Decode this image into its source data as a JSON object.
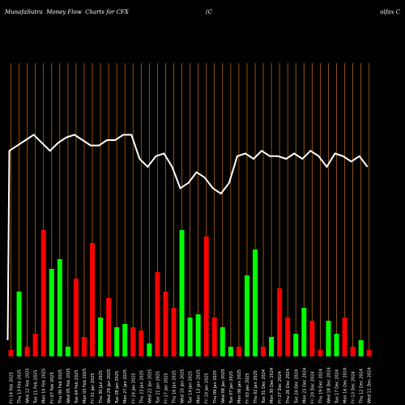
{
  "header": {
    "left": "MunafaSutra  Money Flow  Charts for CFX",
    "middle": "(C",
    "right": "olfax C"
  },
  "colors": {
    "background": "#000000",
    "grid": "#b4650f",
    "up": "#00ff00",
    "down": "#ff0000",
    "price_line": "#ffffff",
    "text": "#ffffff"
  },
  "chart_data": {
    "type": "bar",
    "title": "MunafaSutra  Money Flow  Charts for CFX",
    "categories": [
      "Fri 14 Feb 2025",
      "Thu 13 Feb 2025",
      "Wed 12 Feb 2025",
      "Tue 11 Feb 2025",
      "Mon 10 Feb 2025",
      "Fri 07 Feb 2025",
      "Thu 06 Feb 2025",
      "Wed 05 Feb 2025",
      "Tue 04 Feb 2025",
      "Mon 03 Feb 2025",
      "Fri 31 Jan 2025",
      "Thu 30 Jan 2025",
      "Wed 29 Jan 2025",
      "Tue 28 Jan 2025",
      "Mon 27 Jan 2025",
      "Fri 24 Jan 2025",
      "Thu 23 Jan 2025",
      "Wed 22 Jan 2025",
      "Tue 21 Jan 2025",
      "Fri 17 Jan 2025",
      "Thu 16 Jan 2025",
      "Wed 15 Jan 2025",
      "Tue 14 Jan 2025",
      "Mon 13 Jan 2025",
      "Fri 10 Jan 2025",
      "Thu 09 Jan 2025",
      "Wed 08 Jan 2025",
      "Tue 07 Jan 2025",
      "Mon 06 Jan 2025",
      "Fri 03 Jan 2025",
      "Thu 02 Jan 2025",
      "Tue 31 Dec 2024",
      "Mon 30 Dec 2024",
      "Fri 27 Dec 2024",
      "Thu 26 Dec 2024",
      "Tue 24 Dec 2024",
      "Mon 23 Dec 2024",
      "Fri 20 Dec 2024",
      "Thu 19 Dec 2024",
      "Wed 18 Dec 2024",
      "Tue 17 Dec 2024",
      "Mon 16 Dec 2024",
      "Fri 13 Dec 2024",
      "Thu 12 Dec 2024",
      "Wed 11 Dec 2024"
    ],
    "tick_labels": [
      "3 Feb 2025",
      "CFX",
      "6 Feb 2025",
      "12 Feb 2025",
      "13 Feb 2025",
      "1 Feb 2025",
      "5 Feb 2025",
      "7 Feb 2025",
      "4 Feb 2025",
      "6 Feb 2025",
      "11 Feb 2025",
      "14 Feb 2025",
      "7 Jan 2025",
      "8 Jan 2025",
      "9 Jan 2025",
      "10 Jan 2025",
      "13 Jan 2025",
      "14 Jan 2025",
      "15 Jan 2025",
      "16 Jan 2025",
      "17 Jan 2025",
      "21 Jan 2025",
      "22 Jan 2025",
      "23 Jan 2025",
      "24 Jan 2025",
      "27 Jan 2025",
      "28 Jan 2025",
      "29 Jan 2025",
      "30 Jan 2025",
      "31 Jan 2025",
      "3 Feb 2025",
      "4 Feb 2025",
      "5 Feb 2025",
      "6 Feb 2025",
      "7 Feb 2025",
      "10 Feb 2025",
      "11 Feb 2025",
      "12 Feb 2025",
      "13 Feb 2025",
      "14 Feb 2025",
      "14 Feb 2025",
      "14 Feb 2025",
      "14 Feb 2025",
      "14 Feb 2025",
      "14 Feb 2025"
    ],
    "bar_colors": [
      "down",
      "green",
      "red",
      "red",
      "red",
      "green",
      "green",
      "green",
      "red",
      "red",
      "red",
      "green",
      "red",
      "green",
      "green",
      "red",
      "red",
      "green",
      "red",
      "red",
      "red",
      "green",
      "green",
      "green",
      "red",
      "red",
      "green",
      "green",
      "red",
      "green",
      "green",
      "red",
      "green",
      "red",
      "red",
      "green",
      "green",
      "red",
      "red",
      "green",
      "green",
      "red",
      "red",
      "green",
      "red"
    ],
    "bar_values": [
      1,
      10,
      1.5,
      3.5,
      19.5,
      13.5,
      15,
      1.5,
      12,
      3,
      17.5,
      6,
      9,
      4.5,
      5,
      4.5,
      4,
      2,
      13,
      10,
      7.5,
      19.5,
      6,
      6.5,
      18.5,
      6,
      4.5,
      1.5,
      1.5,
      12.5,
      16.5,
      1.5,
      3,
      10.5,
      6,
      3.5,
      7.5,
      5.5,
      1,
      5.5,
      3.5,
      6,
      1.5,
      2.5,
      1
    ],
    "line_values": [
      86,
      88,
      90,
      92,
      89,
      86,
      89,
      91,
      92,
      90,
      88,
      88,
      90,
      90,
      92,
      92,
      83,
      80,
      84,
      85,
      80,
      72,
      74,
      78,
      76,
      72,
      70,
      74,
      84,
      85,
      83,
      86,
      84,
      84,
      83,
      85,
      83,
      86,
      84,
      80,
      85,
      84,
      82,
      84,
      80
    ],
    "ylim": [
      0,
      100
    ],
    "grid": true,
    "legend": "none"
  }
}
